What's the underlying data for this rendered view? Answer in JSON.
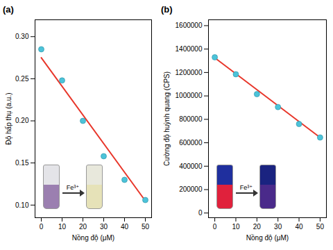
{
  "chart_data": [
    {
      "type": "scatter",
      "title": "(a)",
      "x_label": "Nồng độ (μM)",
      "y_label": "Độ hấp thụ (a.u.)",
      "x": [
        0,
        10,
        20,
        30,
        40,
        50
      ],
      "values": [
        0.285,
        0.248,
        0.2,
        0.158,
        0.13,
        0.106
      ],
      "color": "#4cc3d9",
      "fit": {
        "x": [
          0,
          50
        ],
        "values": [
          0.275,
          0.105
        ],
        "color": "#e8362a"
      },
      "xlim": [
        -3,
        53
      ],
      "xticks": [
        0,
        10,
        20,
        30,
        40,
        50
      ],
      "ylim": [
        0.085,
        0.32
      ],
      "yticks": [
        {
          "value": 0.1,
          "label": "0.10"
        },
        {
          "value": 0.15,
          "label": "0.15"
        },
        {
          "value": 0.2,
          "label": "0.20"
        },
        {
          "value": 0.25,
          "label": "0.25"
        },
        {
          "value": 0.3,
          "label": "0.30"
        }
      ],
      "inset_label": "Fe³⁺"
    },
    {
      "type": "scatter",
      "title": "(b)",
      "x_label": "Nồng độ (μM)",
      "y_label": "Cường độ huỳnh quang (CPS)",
      "x": [
        0,
        10,
        20,
        30,
        40,
        50
      ],
      "values": [
        1330000,
        1185000,
        1015000,
        905000,
        760000,
        645000
      ],
      "color": "#4cc3d9",
      "fit": {
        "x": [
          0,
          50
        ],
        "values": [
          1325000,
          645000
        ],
        "color": "#e8362a"
      },
      "xlim": [
        -3,
        53
      ],
      "xticks": [
        0,
        10,
        20,
        30,
        40,
        50
      ],
      "ylim": [
        -40000,
        1650000
      ],
      "yticks": [
        0,
        200000,
        400000,
        600000,
        800000,
        1000000,
        1200000,
        1400000,
        1600000
      ],
      "inset_label": "Fe³⁺"
    }
  ]
}
